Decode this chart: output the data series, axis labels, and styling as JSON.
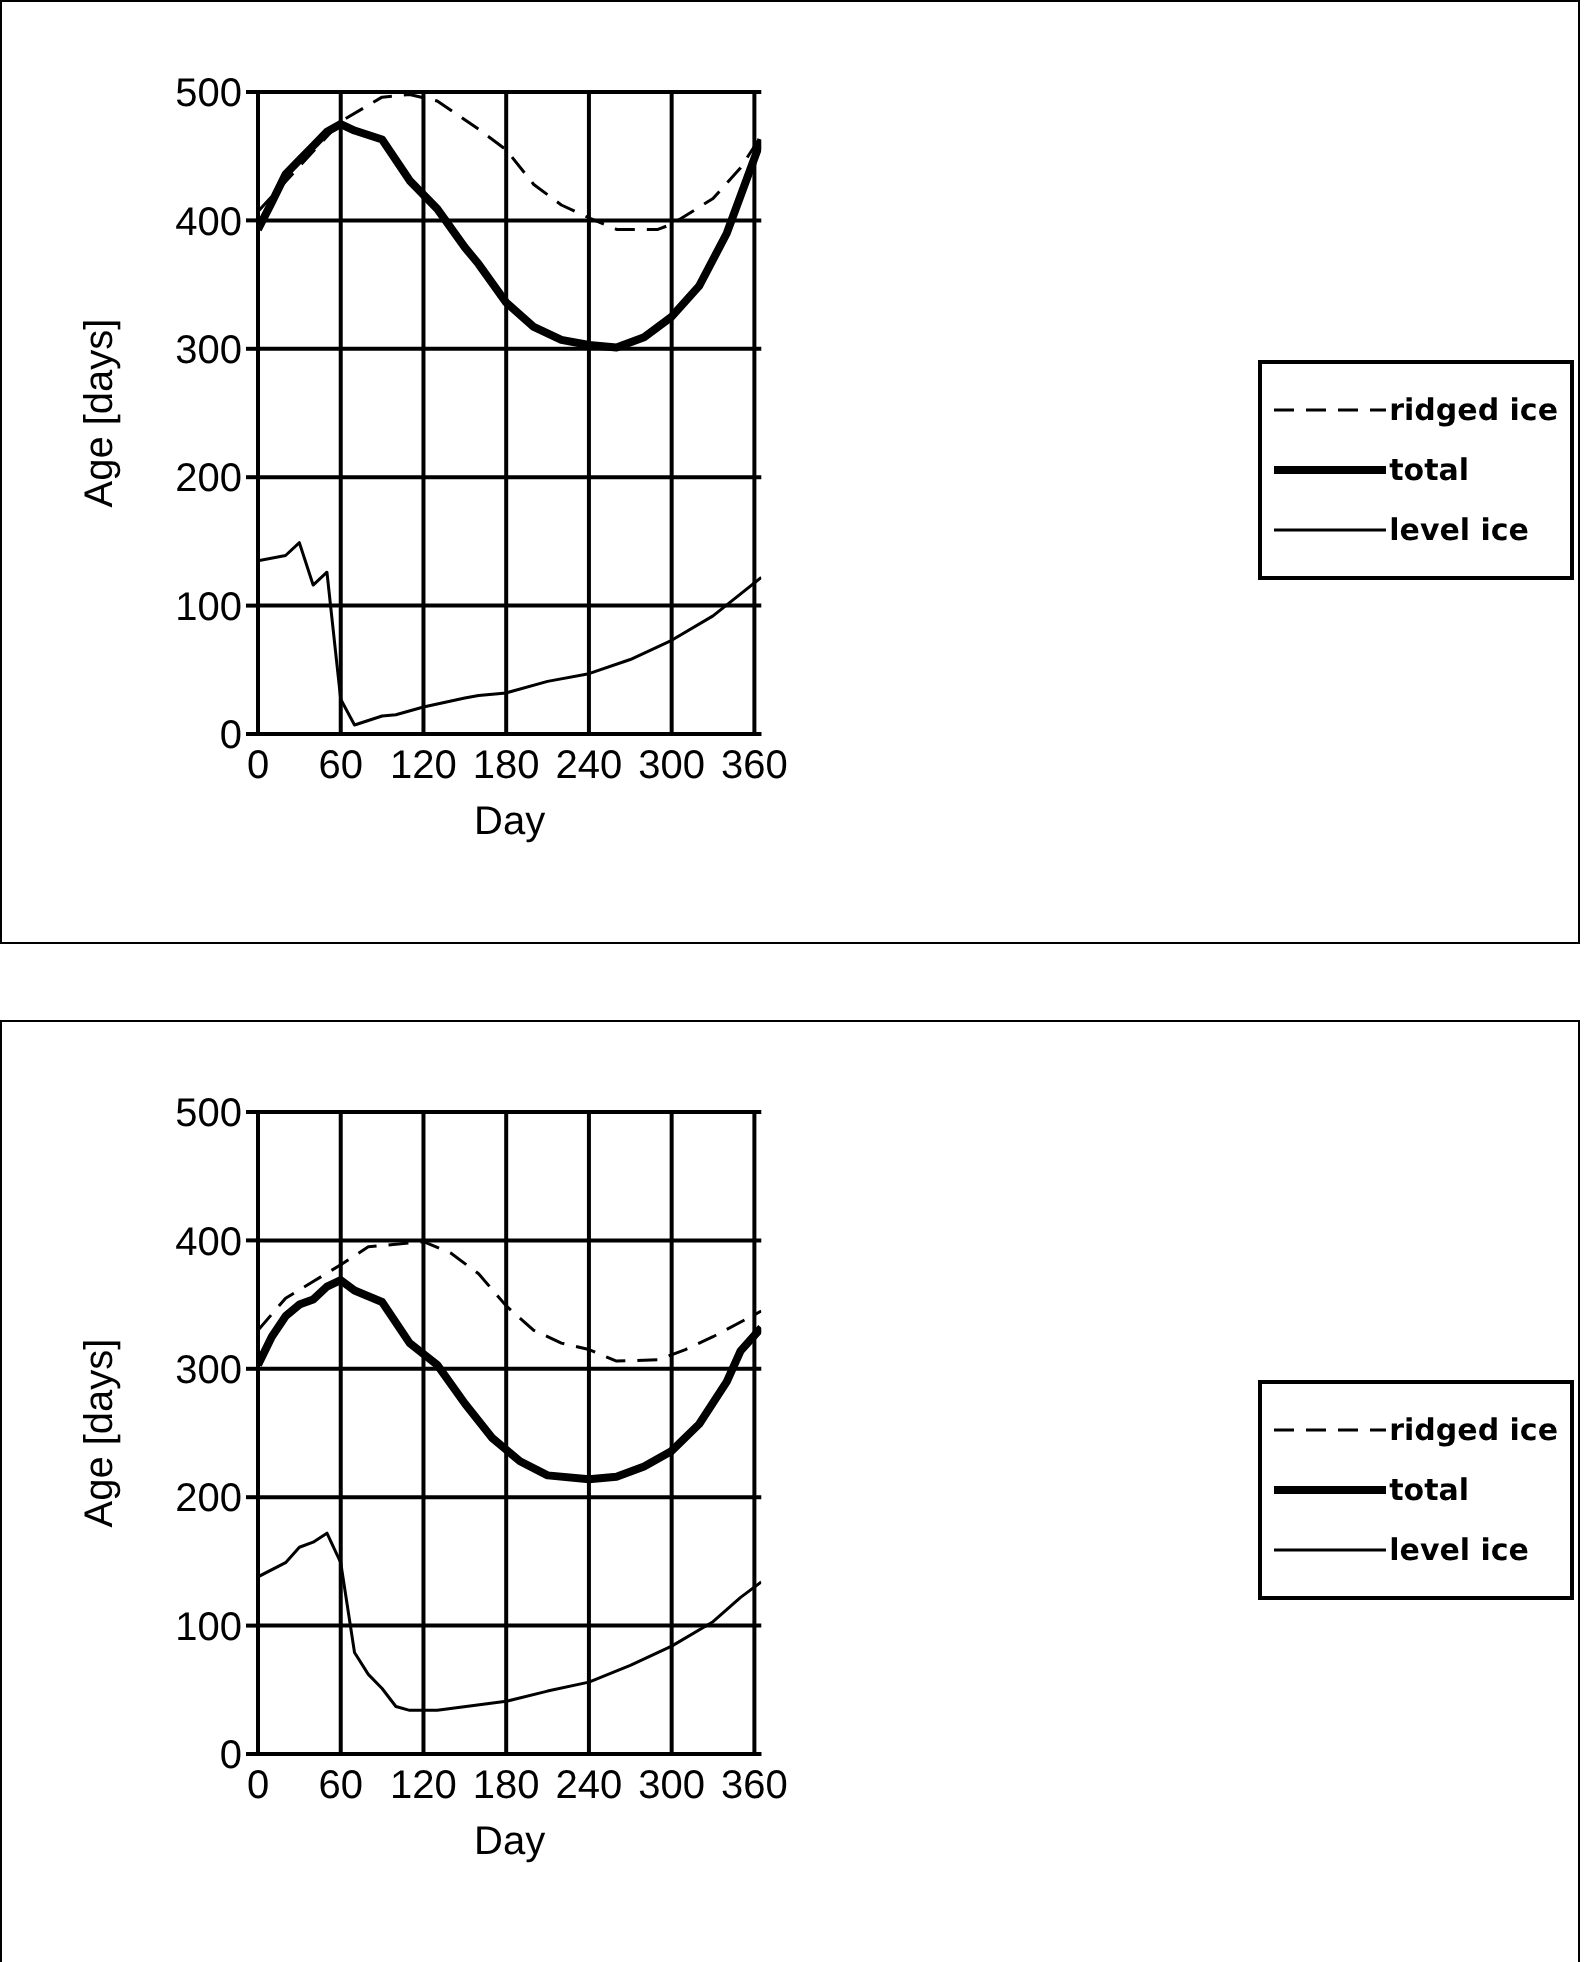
{
  "chart_data": [
    {
      "type": "line",
      "xlabel": "Day",
      "ylabel": "Age   [days]",
      "xlim": [
        0,
        365
      ],
      "xticks": [
        0,
        60,
        120,
        180,
        240,
        300,
        360
      ],
      "ylim": [
        0,
        500
      ],
      "yticks": [
        0,
        100,
        200,
        300,
        400,
        500
      ],
      "grid": true,
      "legend": "right",
      "marker": "none",
      "series": [
        {
          "name": "ridged ice",
          "color": "#000000",
          "line_style": "dashed",
          "x": [
            0,
            60,
            90,
            110,
            130,
            160,
            180,
            200,
            220,
            240,
            260,
            290,
            300,
            330,
            350,
            365
          ],
          "values": [
            407,
            477,
            496,
            498,
            493,
            471,
            455,
            428,
            412,
            402,
            393,
            393,
            397,
            417,
            441,
            466
          ]
        },
        {
          "name": "total",
          "color": "#000000",
          "line_style": "solid",
          "x": [
            0,
            10,
            20,
            30,
            40,
            50,
            60,
            70,
            90,
            110,
            130,
            150,
            160,
            180,
            200,
            220,
            240,
            260,
            280,
            300,
            320,
            340,
            365
          ],
          "values": [
            393,
            414,
            436,
            447,
            458,
            469,
            475,
            470,
            463,
            431,
            409,
            379,
            366,
            336,
            317,
            307,
            303,
            301,
            309,
            325,
            349,
            390,
            463
          ]
        },
        {
          "name": "level ice",
          "color": "#000000",
          "line_style": "solid",
          "x": [
            0,
            20,
            30,
            40,
            50,
            60,
            70,
            90,
            100,
            120,
            150,
            160,
            180,
            210,
            240,
            270,
            300,
            330,
            365
          ],
          "values": [
            135,
            139,
            149,
            116,
            126,
            27,
            7,
            14,
            15,
            21,
            28,
            30,
            32,
            41,
            47,
            58,
            73,
            92,
            122
          ]
        }
      ]
    },
    {
      "type": "line",
      "xlabel": "Day",
      "ylabel": "Age   [days]",
      "xlim": [
        0,
        365
      ],
      "xticks": [
        0,
        60,
        120,
        180,
        240,
        300,
        360
      ],
      "ylim": [
        0,
        500
      ],
      "yticks": [
        0,
        100,
        200,
        300,
        400,
        500
      ],
      "grid": true,
      "legend": "right",
      "marker": "none",
      "series": [
        {
          "name": "ridged ice",
          "color": "#000000",
          "line_style": "dashed",
          "x": [
            0,
            20,
            40,
            60,
            80,
            100,
            120,
            140,
            160,
            180,
            200,
            220,
            240,
            260,
            290,
            310,
            330,
            365
          ],
          "values": [
            330,
            355,
            368,
            381,
            395,
            397,
            399,
            390,
            374,
            349,
            330,
            320,
            315,
            306,
            307,
            315,
            325,
            345
          ]
        },
        {
          "name": "total",
          "color": "#000000",
          "line_style": "solid",
          "x": [
            0,
            10,
            20,
            30,
            40,
            50,
            60,
            70,
            90,
            110,
            130,
            150,
            170,
            190,
            210,
            240,
            260,
            280,
            300,
            320,
            340,
            350,
            365
          ],
          "values": [
            303,
            325,
            341,
            350,
            354,
            364,
            369,
            361,
            352,
            320,
            303,
            273,
            246,
            228,
            217,
            214,
            216,
            224,
            236,
            257,
            290,
            314,
            332
          ]
        },
        {
          "name": "level ice",
          "color": "#000000",
          "line_style": "solid",
          "x": [
            0,
            20,
            30,
            40,
            50,
            60,
            70,
            80,
            90,
            100,
            110,
            130,
            180,
            210,
            240,
            270,
            300,
            330,
            350,
            365
          ],
          "values": [
            138,
            149,
            161,
            165,
            172,
            149,
            79,
            62,
            51,
            37,
            34,
            34,
            41,
            49,
            56,
            69,
            84,
            103,
            122,
            134
          ]
        }
      ]
    }
  ]
}
